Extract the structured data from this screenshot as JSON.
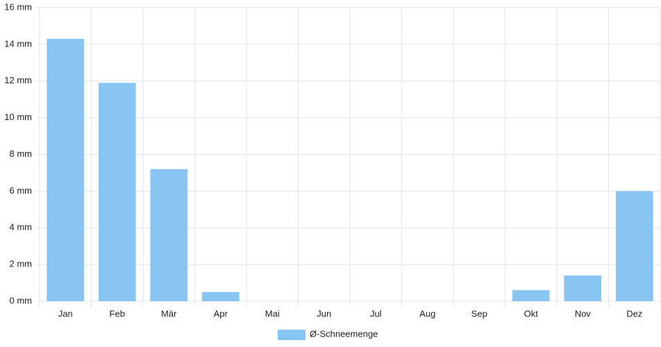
{
  "chart_data": {
    "type": "bar",
    "categories": [
      "Jan",
      "Feb",
      "Mär",
      "Apr",
      "Mai",
      "Jun",
      "Jul",
      "Aug",
      "Sep",
      "Okt",
      "Nov",
      "Dez"
    ],
    "series": [
      {
        "name": "Ø-Schneemenge",
        "color": "#88c5f2",
        "values": [
          14.3,
          11.9,
          7.2,
          0.5,
          0,
          0,
          0,
          0,
          0,
          0.6,
          1.4,
          6.0
        ]
      }
    ],
    "ylim": [
      0,
      16
    ],
    "yticks": [
      {
        "value": 0,
        "label": "0 mm"
      },
      {
        "value": 2,
        "label": "2 mm"
      },
      {
        "value": 4,
        "label": "4 mm"
      },
      {
        "value": 6,
        "label": "6 mm"
      },
      {
        "value": 8,
        "label": "8 mm"
      },
      {
        "value": 10,
        "label": "10 mm"
      },
      {
        "value": 12,
        "label": "12 mm"
      },
      {
        "value": 14,
        "label": "14 mm"
      },
      {
        "value": 16,
        "label": "16 mm"
      }
    ],
    "grid": true,
    "legend": "bottom"
  }
}
